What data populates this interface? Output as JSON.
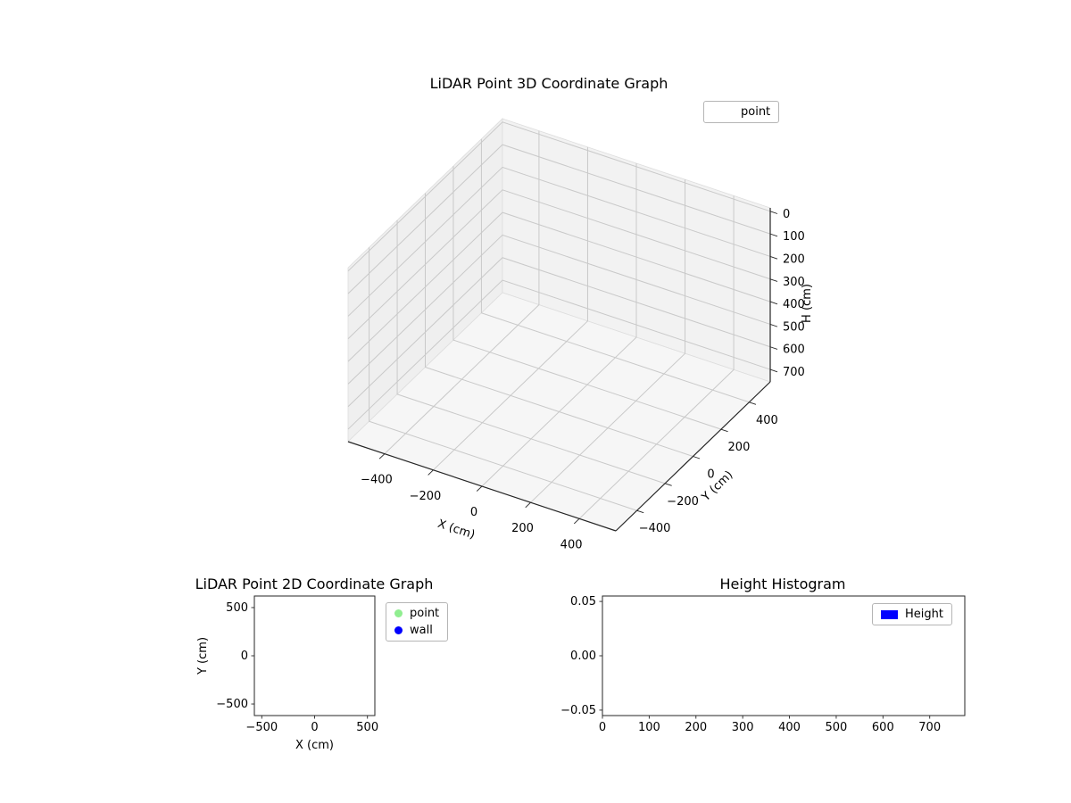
{
  "figure": {
    "background": "#ffffff"
  },
  "chart_data": [
    {
      "id": "lidar-3d",
      "type": "scatter3d",
      "title": "LiDAR Point 3D Coordinate Graph",
      "xlabel": "X (cm)",
      "ylabel": "Y (cm)",
      "zlabel": "H (cm)",
      "xticks": [
        -400,
        -200,
        0,
        200,
        400
      ],
      "yticks": [
        -400,
        -200,
        0,
        200,
        400
      ],
      "zticks": [
        0,
        100,
        200,
        300,
        400,
        500,
        600,
        700
      ],
      "xlim": [
        -550,
        550
      ],
      "ylim": [
        -550,
        550
      ],
      "zlim": [
        -15,
        755
      ],
      "zaxis_inverted": true,
      "grid": true,
      "legend": [
        {
          "label": "point",
          "marker": "none"
        }
      ],
      "legend_position": "upper right outside",
      "series": [
        {
          "name": "point",
          "points": []
        }
      ]
    },
    {
      "id": "lidar-2d",
      "type": "scatter",
      "title": "LiDAR Point 2D Coordinate Graph",
      "xlabel": "X (cm)",
      "ylabel": "Y (cm)",
      "xticks": [
        -500,
        0,
        500
      ],
      "yticks": [
        500,
        0,
        -500
      ],
      "xlim": [
        -570,
        570
      ],
      "ylim": [
        -620,
        620
      ],
      "grid": false,
      "legend": [
        {
          "label": "point",
          "color": "#90ee90",
          "marker": "circle"
        },
        {
          "label": "wall",
          "color": "#0000ff",
          "marker": "circle"
        }
      ],
      "legend_position": "outside upper right",
      "series": [
        {
          "name": "point",
          "color": "#90ee90",
          "points": []
        },
        {
          "name": "wall",
          "color": "#0000ff",
          "points": []
        }
      ]
    },
    {
      "id": "height-histogram",
      "type": "bar",
      "title": "Height Histogram",
      "xlabel": "",
      "ylabel": "",
      "xticks": [
        0,
        100,
        200,
        300,
        400,
        500,
        600,
        700
      ],
      "yticks": [
        0.05,
        0,
        -0.05
      ],
      "ytick_labels": [
        "0.05",
        "0.00",
        "−0.05"
      ],
      "xlim": [
        0,
        775
      ],
      "ylim": [
        -0.055,
        0.055
      ],
      "grid": false,
      "legend": [
        {
          "label": "Height",
          "color": "#0000ff",
          "marker": "rect"
        }
      ],
      "legend_position": "upper right",
      "categories": [],
      "values": []
    }
  ]
}
